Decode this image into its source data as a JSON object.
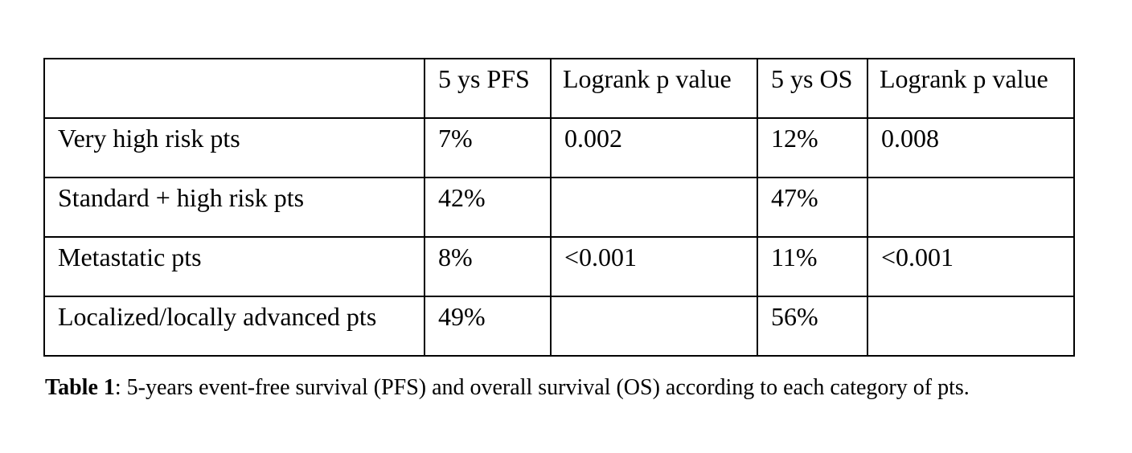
{
  "table": {
    "header": [
      "",
      "5 ys PFS",
      "Logrank p value",
      "5 ys OS",
      "Logrank p value"
    ],
    "rows": [
      [
        "Very high risk pts",
        "7%",
        "0.002",
        "12%",
        "0.008"
      ],
      [
        "Standard + high risk pts",
        "42%",
        "",
        "47%",
        ""
      ],
      [
        "Metastatic pts",
        "8%",
        "<0.001",
        "11%",
        "<0.001"
      ],
      [
        "Localized/locally advanced pts",
        "49%",
        "",
        "56%",
        ""
      ]
    ]
  },
  "caption": {
    "label": "Table 1",
    "text": ": 5-years event-free survival (PFS) and overall survival (OS) according to each category of pts."
  }
}
